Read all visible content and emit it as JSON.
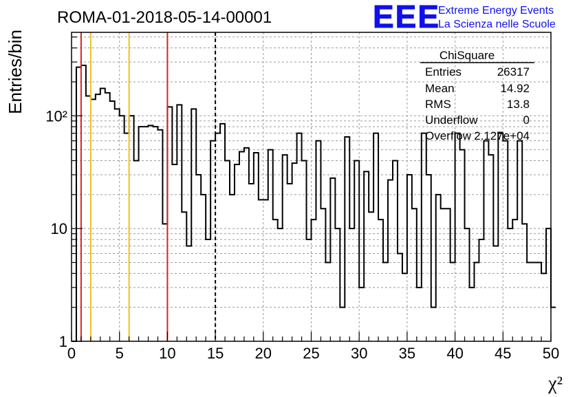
{
  "title": "ROMA-01-2018-05-14-00001",
  "logo": {
    "text": "EEE",
    "line1": "Extreme Energy Events",
    "line2": "La Scienza nelle Scuole",
    "color": "#1010ee"
  },
  "stats": {
    "name": "ChiSquare",
    "rows": [
      {
        "label": "Entries",
        "value": "26317"
      },
      {
        "label": "Mean",
        "value": "14.92"
      },
      {
        "label": "RMS",
        "value": "13.8"
      },
      {
        "label": "Underflow",
        "value": "0"
      },
      {
        "label": "Overflow",
        "value": "2.127e+04"
      }
    ]
  },
  "chart_data": {
    "type": "histogram",
    "title": "ROMA-01-2018-05-14-00001",
    "xlabel": "χ²",
    "ylabel": "Entries/bin",
    "xlim": [
      0,
      50
    ],
    "ylim": [
      1,
      550
    ],
    "yscale": "log",
    "grid": true,
    "x_ticks": [
      0,
      5,
      10,
      15,
      20,
      25,
      30,
      35,
      40,
      45,
      50
    ],
    "y_ticks": [
      {
        "value": 1,
        "label": "1"
      },
      {
        "value": 10,
        "label": "10"
      },
      {
        "value": 100,
        "label": "10²"
      }
    ],
    "bin_width": 0.5,
    "bins": [
      null,
      270,
      280,
      150,
      140,
      155,
      175,
      160,
      135,
      115,
      100,
      70,
      100,
      40,
      80,
      80,
      82,
      80,
      75,
      11,
      120,
      37,
      125,
      14,
      7,
      115,
      30,
      20,
      8,
      60,
      70,
      85,
      40,
      20,
      37,
      48,
      52,
      25,
      47,
      18,
      18,
      50,
      12,
      10,
      45,
      25,
      38,
      70,
      40,
      8,
      12,
      60,
      15,
      5,
      28,
      10,
      2,
      65,
      10,
      40,
      3,
      32,
      14,
      70,
      12,
      5,
      27,
      40,
      6,
      4,
      30,
      15,
      3,
      70,
      30,
      2,
      20,
      15,
      15,
      5,
      70,
      50,
      10,
      3,
      5,
      8,
      60,
      45,
      7,
      70,
      60,
      10,
      12,
      60,
      11,
      5,
      5,
      5,
      4,
      10,
      2
    ],
    "vertical_lines": [
      {
        "x": 1,
        "color": "#e02020",
        "style": "solid"
      },
      {
        "x": 2,
        "color": "#f0c020",
        "style": "solid"
      },
      {
        "x": 6,
        "color": "#f0c020",
        "style": "solid"
      },
      {
        "x": 10,
        "color": "#e02020",
        "style": "solid"
      },
      {
        "x": 15,
        "color": "#000000",
        "style": "dashed"
      }
    ]
  }
}
